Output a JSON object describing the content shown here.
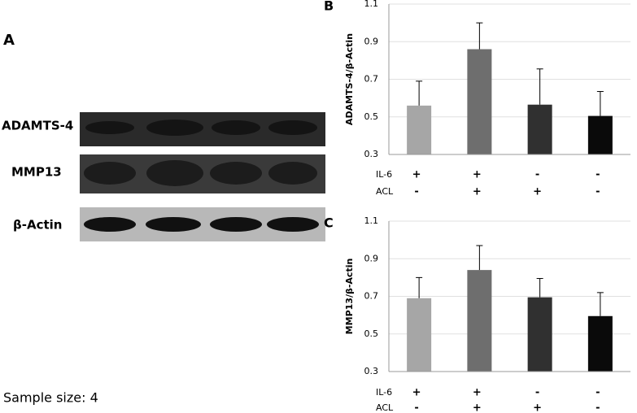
{
  "panel_a": {
    "label": "A",
    "rows": [
      "ADAMTS-4",
      "MMP13",
      "β-Actin"
    ],
    "sample_size": "Sample size: 4"
  },
  "chart_data": [
    {
      "type": "bar",
      "panel": "B",
      "y_label": "ADAMTS-4/β-Actin",
      "values": [
        0.56,
        0.86,
        0.565,
        0.505
      ],
      "errors": [
        0.13,
        0.14,
        0.19,
        0.13
      ],
      "colors": [
        "#a6a6a6",
        "#6e6e6e",
        "#303030",
        "#0a0a0a"
      ],
      "conditions": [
        {
          "name": "IL-6",
          "values": [
            "+",
            "+",
            "-",
            "-"
          ]
        },
        {
          "name": "ACL",
          "values": [
            "-",
            "+",
            "+",
            "-"
          ]
        }
      ],
      "ylim": [
        0.3,
        1.1
      ],
      "yticks": [
        0.3,
        0.5,
        0.7,
        0.9,
        1.1
      ],
      "grid": true
    },
    {
      "type": "bar",
      "panel": "C",
      "y_label": "MMP13/β-Actin",
      "values": [
        0.69,
        0.84,
        0.695,
        0.595
      ],
      "errors": [
        0.11,
        0.13,
        0.1,
        0.125
      ],
      "colors": [
        "#a6a6a6",
        "#6e6e6e",
        "#303030",
        "#0a0a0a"
      ],
      "conditions": [
        {
          "name": "IL-6",
          "values": [
            "+",
            "+",
            "-",
            "-"
          ]
        },
        {
          "name": "ACL",
          "values": [
            "-",
            "+",
            "+",
            "-"
          ]
        }
      ],
      "ylim": [
        0.3,
        1.1
      ],
      "yticks": [
        0.3,
        0.5,
        0.7,
        0.9,
        1.1
      ],
      "grid": true
    }
  ]
}
